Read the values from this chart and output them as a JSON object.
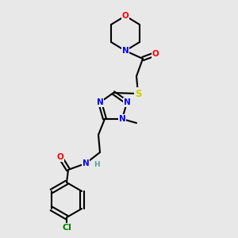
{
  "background_color": "#e8e8e8",
  "atom_colors": {
    "C": "#000000",
    "N": "#0000ff",
    "O": "#ff0000",
    "S": "#cccc00",
    "Cl": "#008000",
    "H": "#5f9ea0"
  },
  "bond_color": "#000000",
  "font_size_atom": 7.5,
  "font_size_small": 6.5
}
